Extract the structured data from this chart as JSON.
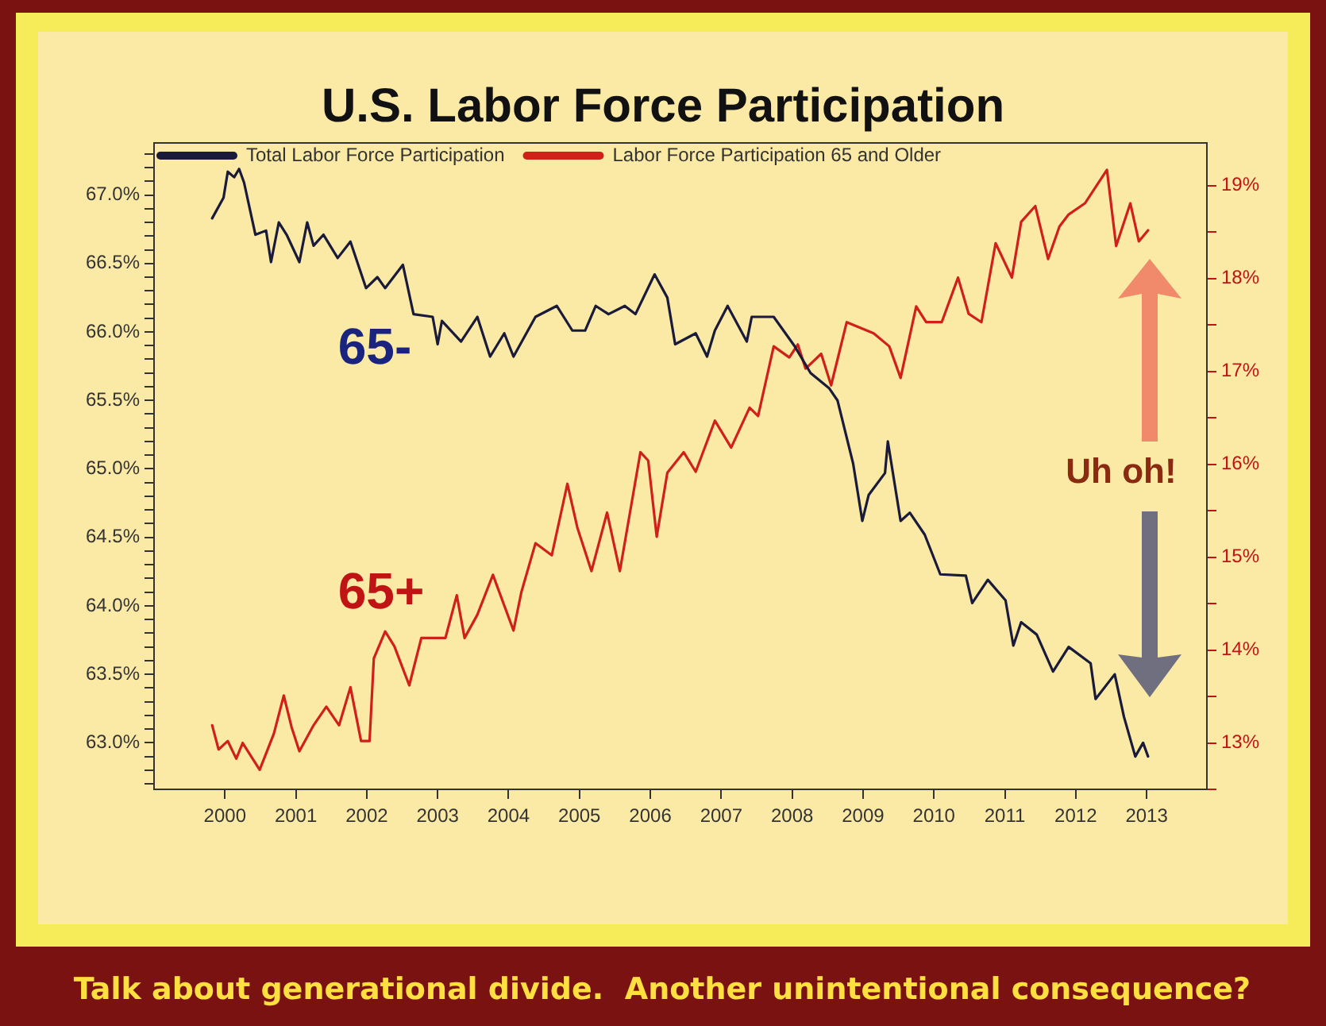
{
  "chart_data": {
    "type": "line",
    "title": "U.S. Labor Force Participation",
    "x": [
      1999.82,
      1999.98,
      2000.04,
      2000.13,
      2000.2,
      2000.27,
      2000.43,
      2000.58,
      2000.65,
      2000.76,
      2000.87,
      2001.05,
      2001.16,
      2001.25,
      2001.39,
      2001.59,
      2001.77,
      2001.99,
      2002.15,
      2002.26,
      2002.51,
      2002.66,
      2002.93,
      2003.0,
      2003.06,
      2003.33,
      2003.56,
      2003.74,
      2003.94,
      2004.07,
      2004.38,
      2004.68,
      2004.9,
      2005.08,
      2005.23,
      2005.41,
      2005.64,
      2005.79,
      2006.06,
      2006.24,
      2006.35,
      2006.64,
      2006.8,
      2006.91,
      2007.09,
      2007.36,
      2007.43,
      2007.74,
      2008.03,
      2008.26,
      2008.52,
      2008.64,
      2008.86,
      2008.99,
      2009.08,
      2009.31,
      2009.35,
      2009.53,
      2009.66,
      2009.87,
      2010.09,
      2010.45,
      2010.54,
      2010.76,
      2011.01,
      2011.12,
      2011.23,
      2011.45,
      2011.68,
      2011.9,
      2012.21,
      2012.28,
      2012.55,
      2012.68,
      2012.84,
      2012.95,
      2013.02
    ],
    "series": [
      {
        "name": "Total Labor Force Participation",
        "color": "#1a1a3a",
        "values": [
          66.83,
          66.98,
          67.17,
          67.13,
          67.19,
          67.09,
          66.71,
          66.74,
          66.51,
          66.8,
          66.71,
          66.51,
          66.8,
          66.63,
          66.71,
          66.54,
          66.66,
          66.32,
          66.4,
          66.32,
          66.49,
          66.13,
          66.11,
          65.91,
          66.08,
          65.93,
          66.11,
          65.82,
          65.99,
          65.82,
          66.11,
          66.19,
          66.01,
          66.01,
          66.19,
          66.13,
          66.19,
          66.13,
          66.42,
          66.25,
          65.91,
          65.99,
          65.82,
          66.01,
          66.19,
          65.93,
          66.11,
          66.11,
          65.9,
          65.7,
          65.59,
          65.5,
          65.04,
          64.62,
          64.81,
          64.97,
          65.2,
          64.62,
          64.68,
          64.52,
          64.23,
          64.22,
          64.02,
          64.19,
          64.04,
          63.71,
          63.88,
          63.79,
          63.52,
          63.7,
          63.58,
          63.32,
          63.5,
          63.19,
          62.9,
          63.0,
          62.9
        ]
      },
      {
        "name": "Labor Force Participation 65 and Older",
        "color": "#d0201a",
        "axis": "y2",
        "x": [
          1999.82,
          1999.91,
          2000.04,
          2000.16,
          2000.25,
          2000.49,
          2000.69,
          2000.83,
          2000.94,
          2001.05,
          2001.25,
          2001.43,
          2001.61,
          2001.77,
          2001.92,
          2002.04,
          2002.1,
          2002.26,
          2002.39,
          2002.6,
          2002.77,
          2003.11,
          2003.27,
          2003.38,
          2003.56,
          2003.78,
          2004.07,
          2004.18,
          2004.38,
          2004.61,
          2004.83,
          2004.97,
          2005.17,
          2005.39,
          2005.57,
          2005.86,
          2005.97,
          2006.09,
          2006.24,
          2006.47,
          2006.64,
          2006.91,
          2007.14,
          2007.4,
          2007.52,
          2007.74,
          2007.96,
          2008.08,
          2008.19,
          2008.41,
          2008.55,
          2008.77,
          2009.15,
          2009.37,
          2009.53,
          2009.75,
          2009.89,
          2010.11,
          2010.34,
          2010.49,
          2010.67,
          2010.87,
          2011.1,
          2011.23,
          2011.43,
          2011.61,
          2011.77,
          2011.9,
          2012.13,
          2012.44,
          2012.57,
          2012.77,
          2012.89,
          2013.02
        ],
        "values": [
          13.19,
          12.93,
          13.02,
          12.83,
          13.0,
          12.71,
          13.1,
          13.51,
          13.17,
          12.91,
          13.19,
          13.39,
          13.19,
          13.6,
          13.02,
          13.02,
          13.91,
          14.2,
          14.04,
          13.62,
          14.13,
          14.13,
          14.59,
          14.13,
          14.38,
          14.81,
          14.21,
          14.62,
          15.15,
          15.02,
          15.79,
          15.32,
          14.85,
          15.48,
          14.85,
          16.13,
          16.04,
          15.22,
          15.91,
          16.13,
          15.92,
          16.47,
          16.18,
          16.61,
          16.52,
          17.27,
          17.15,
          17.29,
          17.03,
          17.19,
          16.85,
          17.53,
          17.41,
          17.27,
          16.93,
          17.7,
          17.53,
          17.53,
          18.01,
          17.62,
          17.53,
          18.38,
          18.01,
          18.61,
          18.78,
          18.21,
          18.56,
          18.69,
          18.81,
          19.17,
          18.35,
          18.81,
          18.4,
          18.52
        ]
      }
    ],
    "xlim": [
      1999.0,
      2013.85
    ],
    "xticks": [
      2000,
      2001,
      2002,
      2003,
      2004,
      2005,
      2006,
      2007,
      2008,
      2009,
      2010,
      2011,
      2012,
      2013
    ],
    "ylim": [
      62.66,
      67.38
    ],
    "yticks": [
      {
        "value": 62.7,
        "label": null
      },
      {
        "value": 62.8,
        "label": null
      },
      {
        "value": 62.9,
        "label": null
      },
      {
        "value": 63.0,
        "label": "63.0%"
      },
      {
        "value": 63.1,
        "label": null
      },
      {
        "value": 63.2,
        "label": null
      },
      {
        "value": 63.3,
        "label": null
      },
      {
        "value": 63.4,
        "label": null
      },
      {
        "value": 63.5,
        "label": "63.5%"
      },
      {
        "value": 63.6,
        "label": null
      },
      {
        "value": 63.7,
        "label": null
      },
      {
        "value": 63.8,
        "label": null
      },
      {
        "value": 63.9,
        "label": null
      },
      {
        "value": 64.0,
        "label": "64.0%"
      },
      {
        "value": 64.1,
        "label": null
      },
      {
        "value": 64.2,
        "label": null
      },
      {
        "value": 64.3,
        "label": null
      },
      {
        "value": 64.4,
        "label": null
      },
      {
        "value": 64.5,
        "label": "64.5%"
      },
      {
        "value": 64.6,
        "label": null
      },
      {
        "value": 64.7,
        "label": null
      },
      {
        "value": 64.8,
        "label": null
      },
      {
        "value": 64.9,
        "label": null
      },
      {
        "value": 65.0,
        "label": "65.0%"
      },
      {
        "value": 65.1,
        "label": null
      },
      {
        "value": 65.2,
        "label": null
      },
      {
        "value": 65.3,
        "label": null
      },
      {
        "value": 65.4,
        "label": null
      },
      {
        "value": 65.5,
        "label": "65.5%"
      },
      {
        "value": 65.6,
        "label": null
      },
      {
        "value": 65.7,
        "label": null
      },
      {
        "value": 65.8,
        "label": null
      },
      {
        "value": 65.9,
        "label": null
      },
      {
        "value": 66.0,
        "label": "66.0%"
      },
      {
        "value": 66.1,
        "label": null
      },
      {
        "value": 66.2,
        "label": null
      },
      {
        "value": 66.3,
        "label": null
      },
      {
        "value": 66.4,
        "label": null
      },
      {
        "value": 66.5,
        "label": "66.5%"
      },
      {
        "value": 66.6,
        "label": null
      },
      {
        "value": 66.7,
        "label": null
      },
      {
        "value": 66.8,
        "label": null
      },
      {
        "value": 66.9,
        "label": null
      },
      {
        "value": 67.0,
        "label": "67.0%"
      },
      {
        "value": 67.1,
        "label": null
      },
      {
        "value": 67.2,
        "label": null
      },
      {
        "value": 67.3,
        "label": null
      }
    ],
    "y2lim": [
      12.5,
      19.46
    ],
    "y2ticks": [
      {
        "value": 12.5,
        "label": null
      },
      {
        "value": 13,
        "label": "13%"
      },
      {
        "value": 13.5,
        "label": null
      },
      {
        "value": 14,
        "label": "14%"
      },
      {
        "value": 14.5,
        "label": null
      },
      {
        "value": 15,
        "label": "15%"
      },
      {
        "value": 15.5,
        "label": null
      },
      {
        "value": 16,
        "label": "16%"
      },
      {
        "value": 16.5,
        "label": null
      },
      {
        "value": 17,
        "label": "17%"
      },
      {
        "value": 17.5,
        "label": null
      },
      {
        "value": 18,
        "label": "18%"
      },
      {
        "value": 18.5,
        "label": null
      },
      {
        "value": 19,
        "label": "19%"
      }
    ],
    "legend": "top",
    "annotations": [
      "65-",
      "65+",
      "Uh oh!",
      "Talk about generational divide.  Another unintentional consequence?"
    ]
  }
}
